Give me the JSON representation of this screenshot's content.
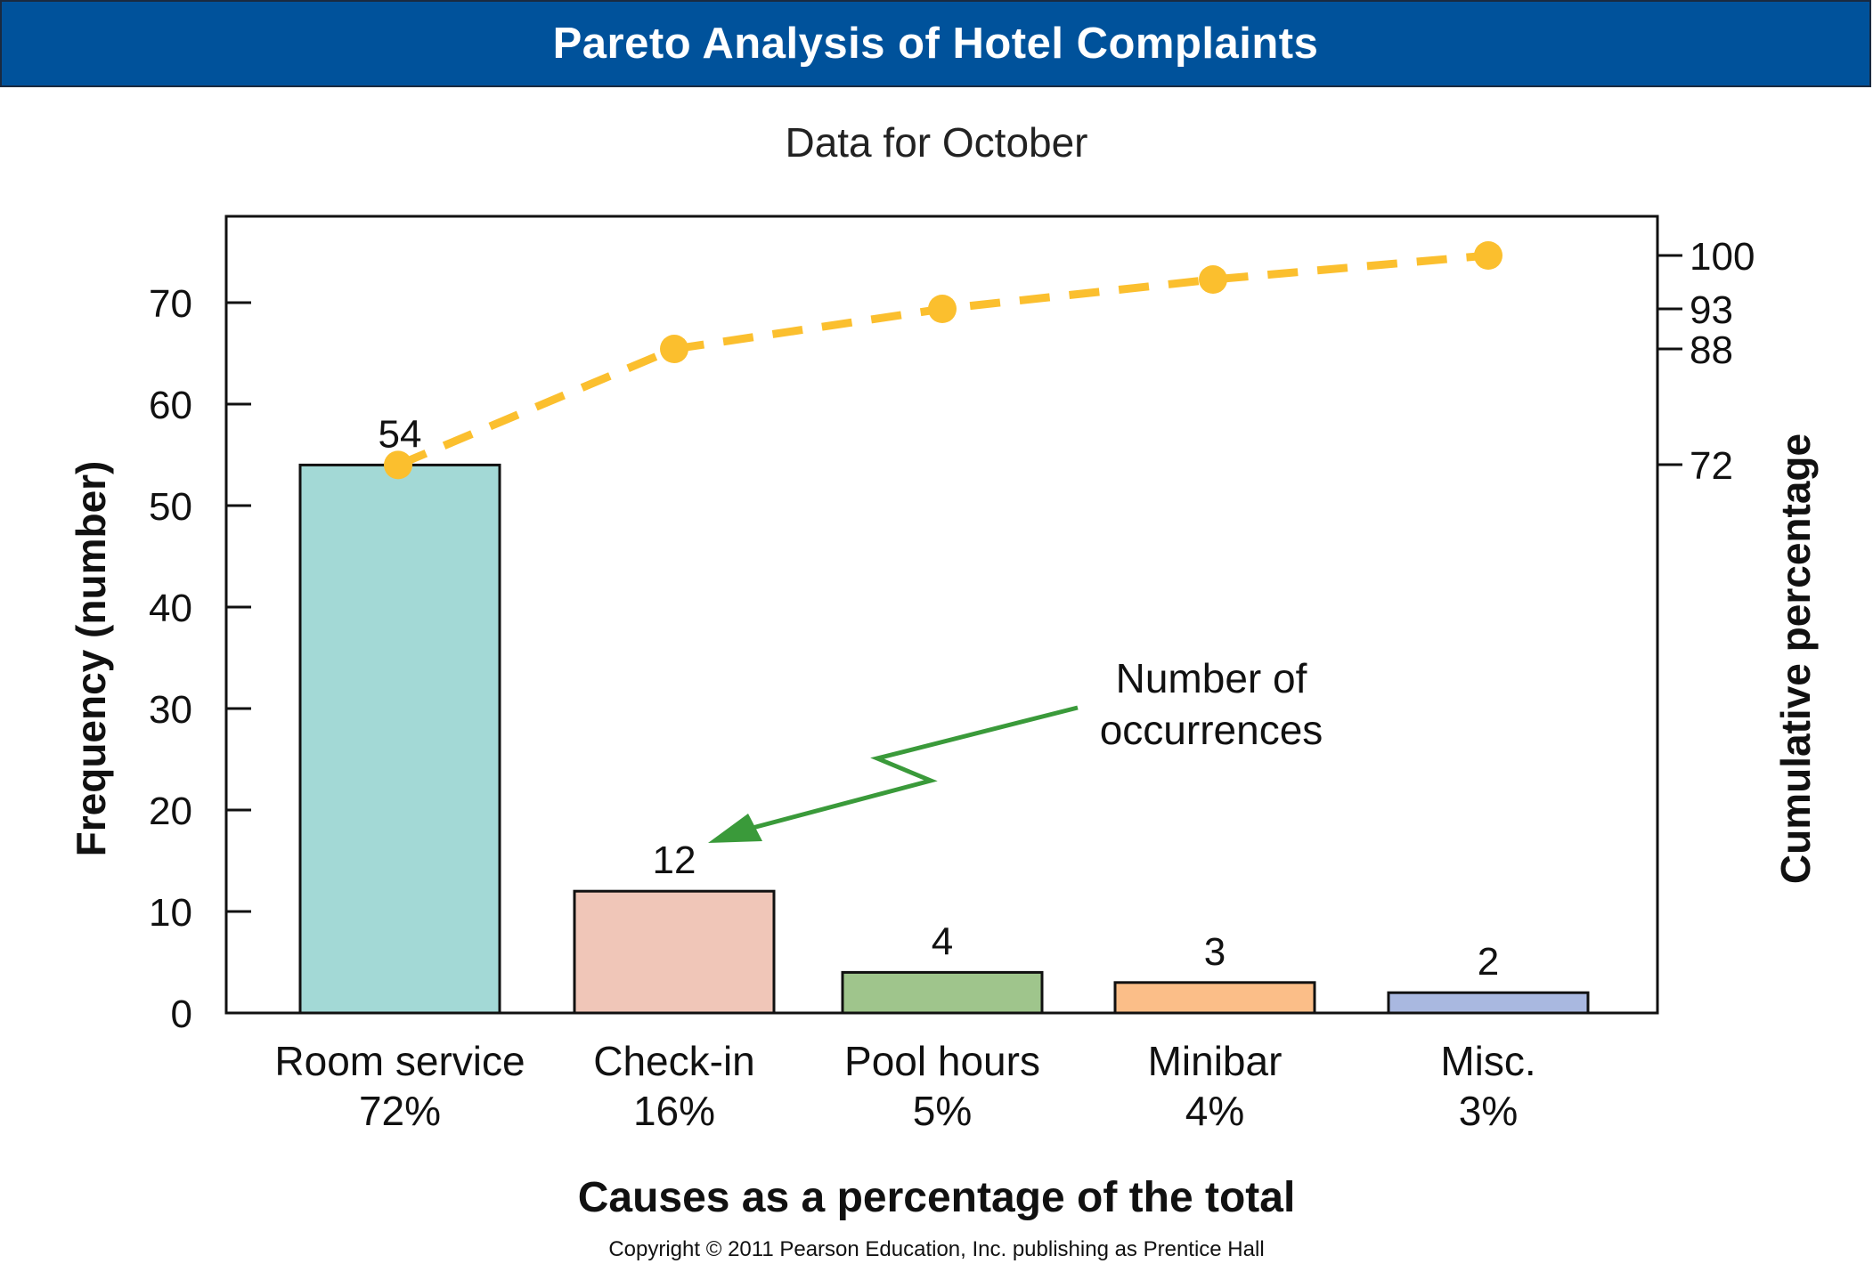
{
  "title": "Pareto Analysis of Hotel Complaints",
  "subtitle": "Data for October",
  "copyright": "Copyright © 2011 Pearson Education, Inc. publishing as Prentice Hall",
  "annotation": {
    "line1": "Number of",
    "line2": "occurrences",
    "arrow_color": "#3a9a3a"
  },
  "colors": {
    "banner": "#00529b",
    "line": "#fbbf2e"
  },
  "chart_data": {
    "type": "bar",
    "categories": [
      "Room service",
      "Check-in",
      "Pool hours",
      "Minibar",
      "Misc."
    ],
    "category_percents": [
      "72%",
      "16%",
      "5%",
      "4%",
      "3%"
    ],
    "values": [
      54,
      12,
      4,
      3,
      2
    ],
    "bar_colors": [
      "#a3d9d6",
      "#f0c6b8",
      "#9fc58c",
      "#fbbe88",
      "#a9b8e0"
    ],
    "xlabel": "Causes as a percentage of the total",
    "ylabel": "Frequency (number)",
    "ylim": [
      0,
      78.5
    ],
    "yticks": [
      0,
      10,
      20,
      30,
      40,
      50,
      60,
      70
    ],
    "cumulative": {
      "label": "Cumulative percentage",
      "values": [
        72,
        88,
        93,
        97,
        100
      ],
      "ticks": [
        72,
        88,
        93,
        100
      ],
      "line_color": "#fbbf2e",
      "style": "dashed"
    },
    "grid": false
  }
}
